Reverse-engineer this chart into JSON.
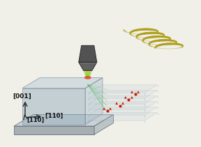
{
  "bg_color": "#f0efe8",
  "crystal_color_top": "#b8ccd8",
  "crystal_color_front": "#8eaabb",
  "crystal_color_side": "#a8c0cc",
  "crystal_alpha": 0.55,
  "base_color_top": "#c2cacf",
  "base_color_front": "#9aa4a9",
  "base_color_side": "#b0babe",
  "coil_color": "#b0a020",
  "laser_green": "#80d840",
  "laser_yellow": "#e8d818",
  "laser_red": "#e02818",
  "probe_dark": "#484848",
  "probe_mid": "#5a5a5a",
  "probe_light": "#6e6e6e",
  "label_001": "[001]",
  "label_110_bar": "[̅110]",
  "label_110": "[110]",
  "arrow_color": "#282828",
  "red_dot_color": "#cc1a08",
  "layer_color": "#c0d0da",
  "layer_edge_color": "#8090a0",
  "edge_color": "#607080"
}
